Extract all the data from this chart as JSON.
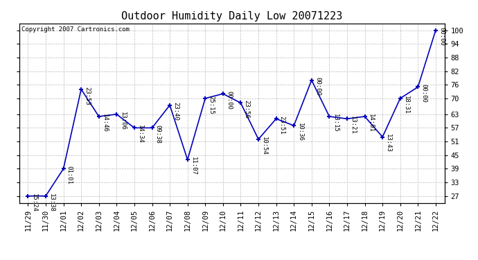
{
  "title": "Outdoor Humidity Daily Low 20071223",
  "copyright": "Copyright 2007 Cartronics.com",
  "x_labels": [
    "11/29",
    "11/30",
    "12/01",
    "12/02",
    "12/03",
    "12/04",
    "12/05",
    "12/06",
    "12/07",
    "12/08",
    "12/09",
    "12/10",
    "12/11",
    "12/12",
    "12/13",
    "12/14",
    "12/15",
    "12/16",
    "12/17",
    "12/18",
    "12/19",
    "12/20",
    "12/21",
    "12/22"
  ],
  "y_values": [
    27,
    27,
    39,
    74,
    62,
    63,
    57,
    57,
    67,
    43,
    70,
    72,
    68,
    52,
    61,
    58,
    78,
    62,
    61,
    62,
    53,
    70,
    75,
    100
  ],
  "point_labels": [
    "15:24",
    "13:38",
    "01:01",
    "23:53",
    "14:46",
    "13:06",
    "14:34",
    "09:38",
    "23:40",
    "11:07",
    "25:15",
    "00:00",
    "23:56",
    "10:54",
    "23:51",
    "10:36",
    "00:00",
    "13:15",
    "13:21",
    "14:01",
    "13:43",
    "18:31",
    "00:00",
    "00:00"
  ],
  "y_ticks": [
    27,
    33,
    39,
    45,
    51,
    57,
    63,
    70,
    76,
    82,
    88,
    94,
    100
  ],
  "line_color": "#0000bb",
  "marker_color": "#0000bb",
  "bg_color": "#ffffff",
  "grid_color": "#bbbbbb",
  "title_fontsize": 11,
  "point_label_fontsize": 6.5,
  "tick_fontsize": 7.5,
  "copyright_fontsize": 6.5,
  "ylim_min": 24,
  "ylim_max": 103
}
